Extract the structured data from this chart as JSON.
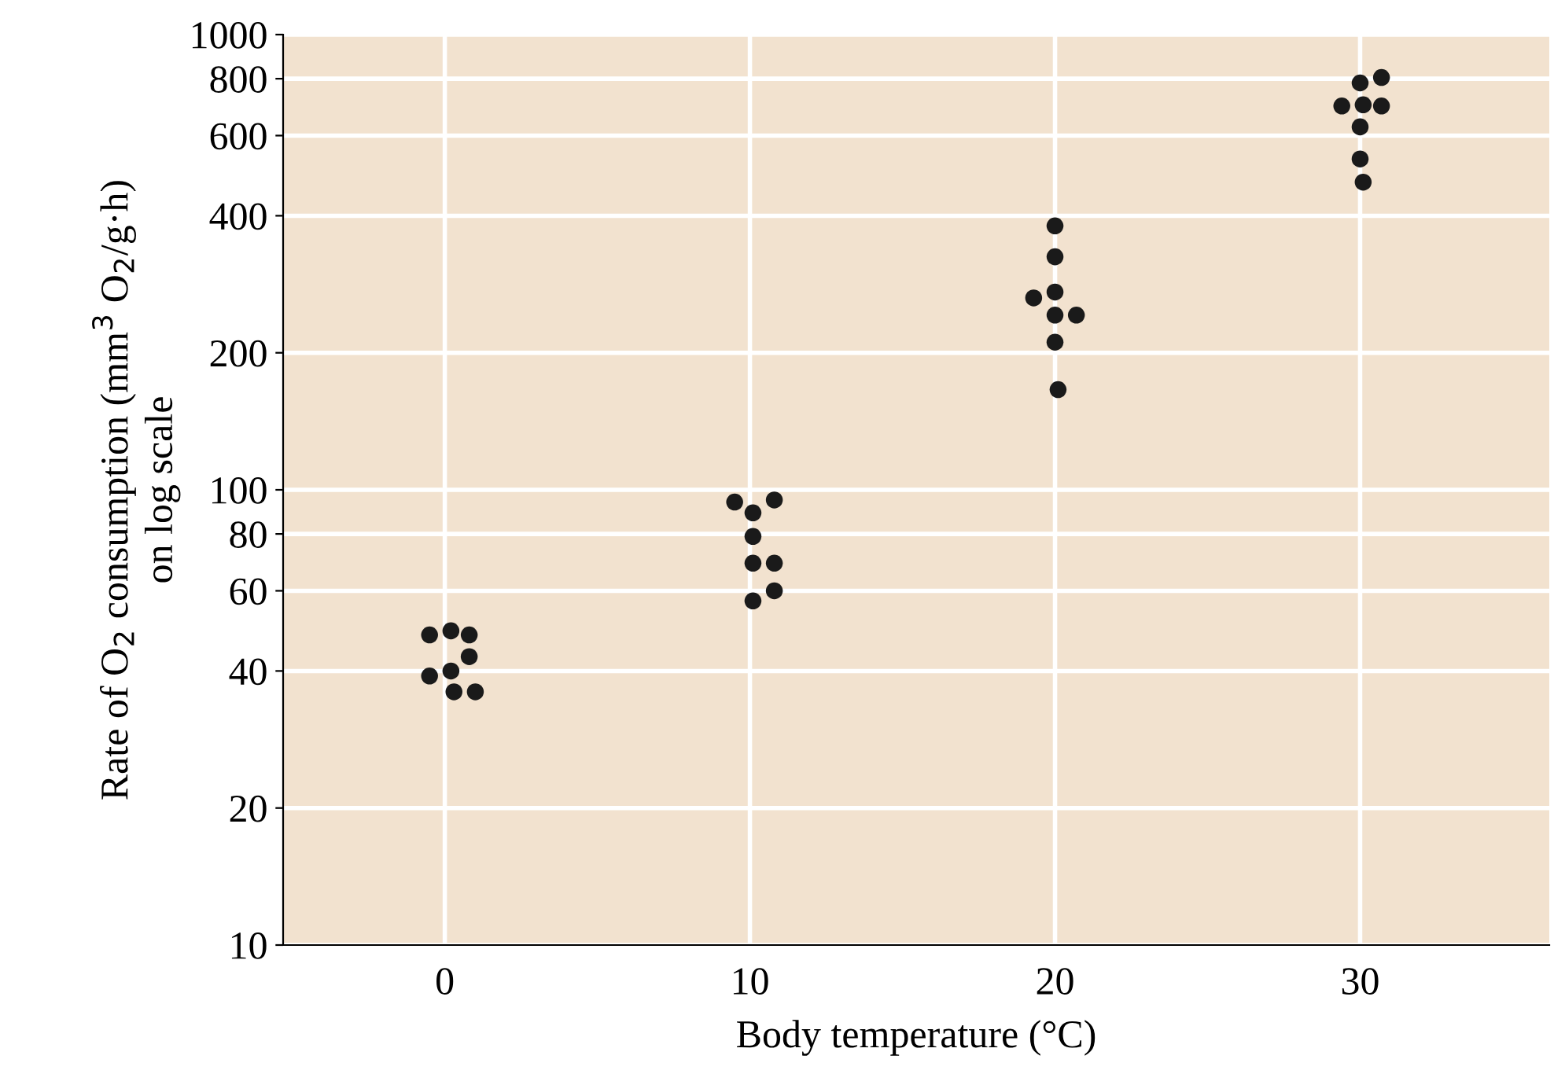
{
  "chart_data": {
    "type": "scatter",
    "xlabel": "Body temperature (°C)",
    "ylabel": "Rate of O$_{2}$ consumption (mm$^{3}$ O$_{2}$/g·h)\non log scale",
    "log": "y",
    "grid": true,
    "marker": "circle",
    "xlim": [
      -5.3,
      36.2
    ],
    "xticks": [
      0,
      10,
      20,
      30
    ],
    "ylim": [
      10,
      1000
    ],
    "yticks": [
      10,
      20,
      40,
      60,
      80,
      100,
      200,
      400,
      600,
      800,
      1000
    ],
    "series": [
      {
        "color": "#1a1a1a",
        "x": [
          -0.5,
          0.2,
          0.8,
          0.8,
          -0.5,
          0.2,
          0.3,
          1.0,
          9.5,
          10.1,
          10.8,
          10.1,
          10.1,
          10.8,
          10.8,
          10.1,
          20.0,
          20.0,
          19.3,
          20.0,
          20.0,
          20.7,
          20.0,
          20.1,
          30.0,
          30.7,
          29.4,
          30.1,
          30.7,
          30.0,
          30.0,
          30.1
        ],
        "values": [
          48,
          49,
          48,
          43,
          39,
          40,
          36,
          36,
          94,
          89,
          95,
          79,
          69,
          69,
          60,
          57,
          380,
          325,
          264,
          272,
          242,
          242,
          211,
          166,
          783,
          805,
          697,
          701,
          697,
          627,
          533,
          474
        ]
      }
    ]
  }
}
